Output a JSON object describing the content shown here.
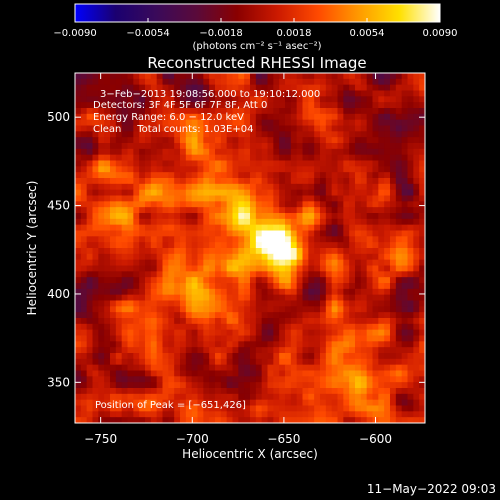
{
  "chart_data": {
    "type": "heatmap",
    "title": "Reconstructed RHESSI Image",
    "xlabel": "Heliocentric X (arcsec)",
    "ylabel": "Heliocentric Y (arcsec)",
    "xlim": [
      -764,
      -573
    ],
    "ylim": [
      327,
      525
    ],
    "xticks": [
      -750,
      -700,
      -650,
      -600
    ],
    "xtick_labels": [
      "−750",
      "−700",
      "−650",
      "−600"
    ],
    "yticks": [
      350,
      400,
      450,
      500
    ],
    "ytick_labels": [
      "350",
      "400",
      "450",
      "500"
    ],
    "colorbar": {
      "range": [
        -0.009,
        0.009
      ],
      "ticks": [
        -0.009,
        -0.0054,
        -0.0018,
        0.0018,
        0.0054,
        0.009
      ],
      "tick_labels": [
        "−0.0090",
        "−0.0054",
        "−0.0018",
        "0.0018",
        "0.0054",
        "0.0090"
      ],
      "unit_label": "(photons cm⁻² s⁻¹ asec⁻²)",
      "colormap": [
        "#0000ff",
        "#1a0070",
        "#3a0a5a",
        "#5a0a3a",
        "#8a0000",
        "#cc1a00",
        "#ff4a00",
        "#ff9a00",
        "#ffe000",
        "#ffffff"
      ]
    },
    "annotations": [
      "3−Feb−2013 19:08:56.000 to 19:10:12.000",
      "Detectors: 3F 4F 5F 6F 7F 8F, Att 0",
      "Energy Range: 6.0 − 12.0 keV",
      "Clean     Total counts: 1.03E+04"
    ],
    "peak_label": "Position of Peak = [−651,426]",
    "peak": [
      -651,
      426
    ],
    "sources": [
      {
        "x": -651,
        "y": 426,
        "sigma": 10,
        "amp": 0.009
      },
      {
        "x": -670,
        "y": 445,
        "sigma": 22,
        "amp": 0.0042
      },
      {
        "x": -695,
        "y": 400,
        "sigma": 24,
        "amp": 0.0032
      },
      {
        "x": -740,
        "y": 450,
        "sigma": 20,
        "amp": 0.003
      },
      {
        "x": -615,
        "y": 360,
        "sigma": 22,
        "amp": 0.0036
      },
      {
        "x": -595,
        "y": 420,
        "sigma": 14,
        "amp": 0.0026
      },
      {
        "x": -720,
        "y": 340,
        "sigma": 18,
        "amp": 0.002
      },
      {
        "x": -700,
        "y": 490,
        "sigma": 16,
        "amp": 0.0022
      },
      {
        "x": -640,
        "y": 500,
        "sigma": 14,
        "amp": 0.0018
      }
    ]
  },
  "footer": {
    "timestamp": "11−May−2022 09:03"
  }
}
